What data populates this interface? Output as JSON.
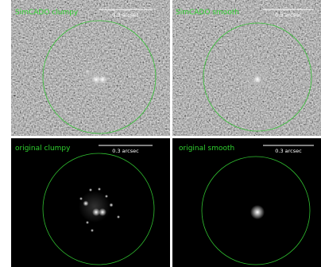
{
  "panels": [
    {
      "title": "SimCADO clumpy",
      "scale_label": "0.3 arcsec"
    },
    {
      "title": "SimCADO smooth",
      "scale_label": "0.3 arcsec"
    },
    {
      "title": "original clumpy",
      "scale_label": "0.3 arcsec"
    },
    {
      "title": "original smooth",
      "scale_label": "0.3 arcsec"
    }
  ]
}
